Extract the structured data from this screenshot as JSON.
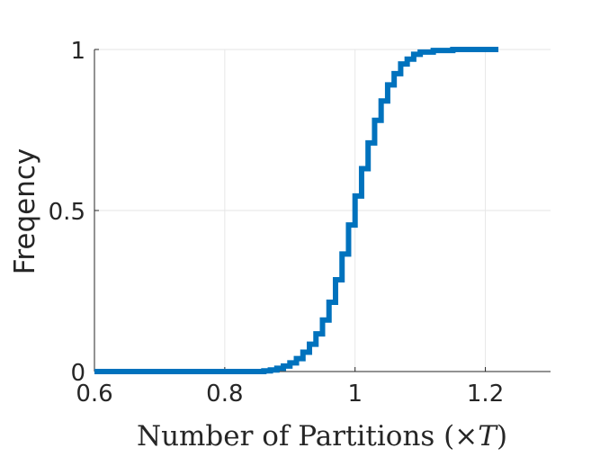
{
  "chart_data": {
    "type": "line",
    "step": true,
    "title": "",
    "xlabel": "Number of Partitions (×T)",
    "xlabel_parts": {
      "before": "Number of Partitions (×",
      "math": "T",
      "after": ")"
    },
    "ylabel": "Freqency",
    "xlim": [
      0.6,
      1.3
    ],
    "ylim": [
      0,
      1
    ],
    "xticks": [
      0.6,
      0.8,
      1.0,
      1.2
    ],
    "xtick_labels": [
      "0.6",
      "0.8",
      "1",
      "1.2"
    ],
    "yticks": [
      0,
      0.5,
      1
    ],
    "ytick_labels": [
      "0",
      "0.5",
      "1"
    ],
    "grid": true,
    "series": [
      {
        "color": "#0072BD",
        "x": [
          0.6,
          0.84,
          0.86,
          0.87,
          0.88,
          0.89,
          0.9,
          0.91,
          0.92,
          0.93,
          0.94,
          0.95,
          0.96,
          0.97,
          0.98,
          0.99,
          1.0,
          1.01,
          1.02,
          1.03,
          1.04,
          1.05,
          1.06,
          1.07,
          1.08,
          1.09,
          1.1,
          1.12,
          1.15,
          1.22
        ],
        "y": [
          0,
          0,
          0.002,
          0.005,
          0.01,
          0.017,
          0.027,
          0.04,
          0.06,
          0.085,
          0.117,
          0.16,
          0.215,
          0.285,
          0.365,
          0.455,
          0.545,
          0.63,
          0.71,
          0.78,
          0.84,
          0.89,
          0.925,
          0.955,
          0.97,
          0.985,
          0.992,
          0.997,
          1.0,
          1.0
        ]
      }
    ]
  }
}
